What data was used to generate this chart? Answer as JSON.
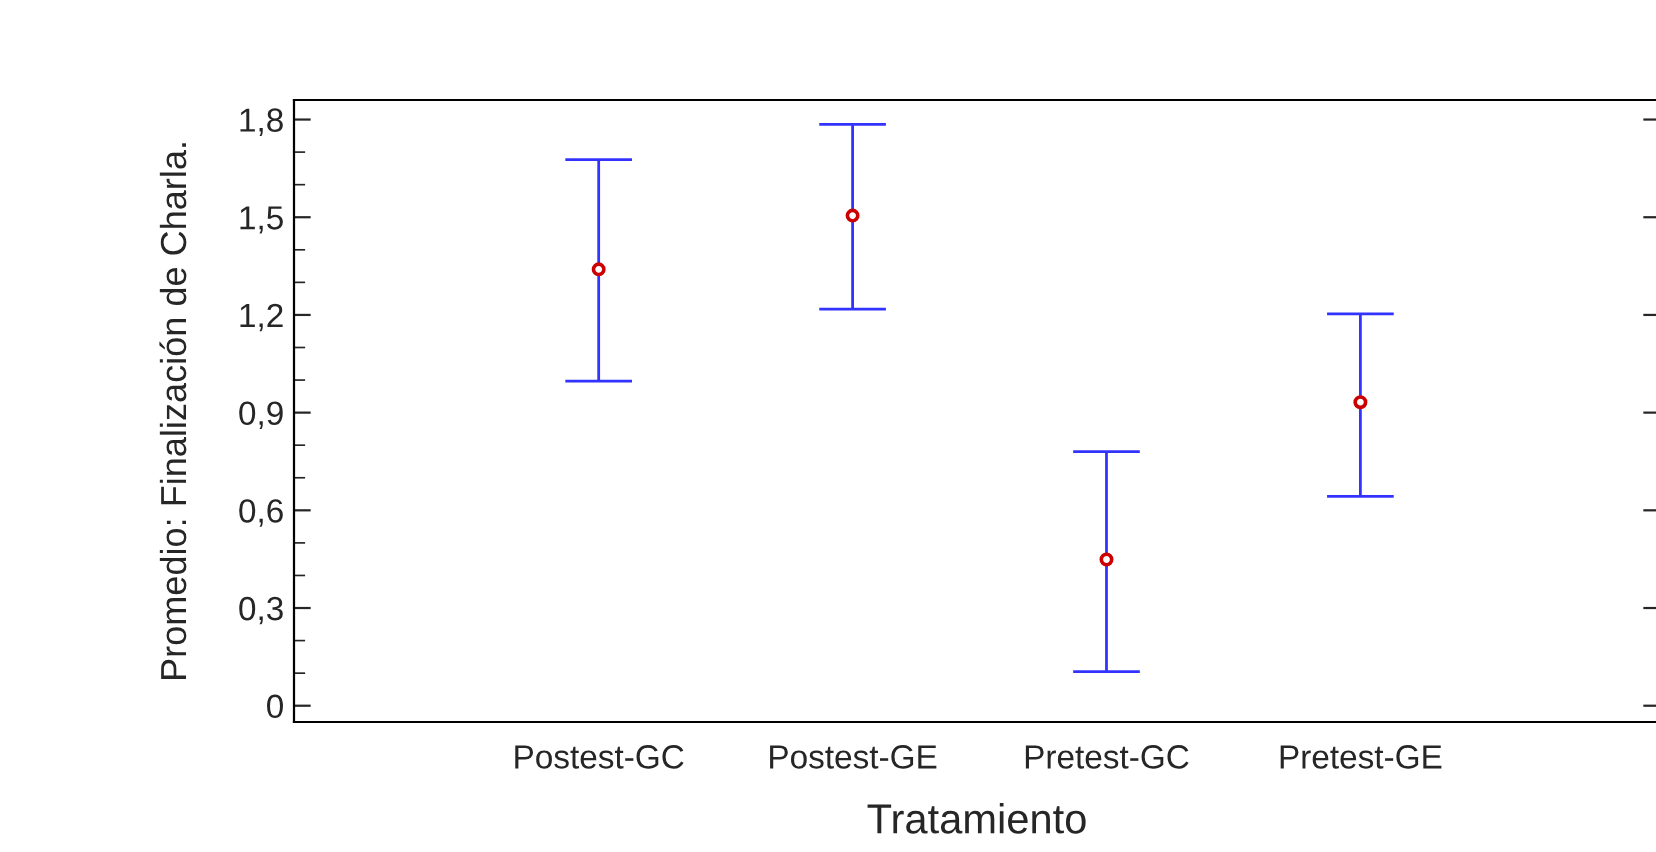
{
  "chart_data": {
    "type": "scatter",
    "xlabel": "Tratamiento",
    "ylabel": "Promedio: Finalización de Charla.",
    "categories": [
      "Postest-GC",
      "Postest-GE",
      "Pretest-GC",
      "Pretest-GE"
    ],
    "series": [
      {
        "color": "#cc0000",
        "values": [
          1.34,
          1.505,
          0.449,
          0.932
        ],
        "errors": [
          [
            0.997,
            1.677
          ],
          [
            1.218,
            1.785
          ],
          [
            0.105,
            0.78
          ],
          [
            0.643,
            1.203
          ]
        ]
      }
    ],
    "ylim": [
      -0.05,
      1.86
    ],
    "yticks": [
      {
        "value": 0,
        "label": "0"
      },
      {
        "value": 0.3,
        "label": "0,3"
      },
      {
        "value": 0.6,
        "label": "0,6"
      },
      {
        "value": 0.9,
        "label": "0,9"
      },
      {
        "value": 1.2,
        "label": "1,2"
      },
      {
        "value": 1.5,
        "label": "1,5"
      },
      {
        "value": 1.8,
        "label": "1,8"
      }
    ],
    "marker": "circle",
    "grid": false,
    "legend": false
  }
}
